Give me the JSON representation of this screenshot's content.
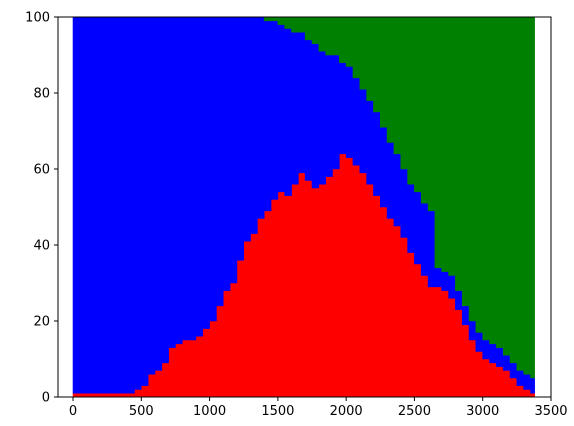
{
  "chart_data": {
    "type": "area",
    "stacked": true,
    "step": true,
    "title": "",
    "xlabel": "",
    "ylabel": "",
    "xlim": [
      -110,
      3500
    ],
    "ylim": [
      0,
      100
    ],
    "xticks": [
      0,
      500,
      1000,
      1500,
      2000,
      2500,
      3000,
      3500
    ],
    "yticks": [
      0,
      20,
      40,
      60,
      80,
      100
    ],
    "grid": false,
    "legend": "none",
    "x": [
      0,
      100,
      200,
      300,
      400,
      450,
      500,
      550,
      600,
      650,
      700,
      750,
      800,
      850,
      900,
      950,
      1000,
      1050,
      1100,
      1150,
      1200,
      1250,
      1300,
      1350,
      1400,
      1450,
      1500,
      1550,
      1600,
      1650,
      1700,
      1750,
      1800,
      1850,
      1900,
      1950,
      2000,
      2050,
      2100,
      2150,
      2200,
      2250,
      2300,
      2350,
      2400,
      2450,
      2500,
      2550,
      2600,
      2650,
      2700,
      2750,
      2800,
      2850,
      2900,
      2950,
      3000,
      3050,
      3100,
      3150,
      3200,
      3250,
      3300,
      3350,
      3380
    ],
    "series": [
      {
        "color": "#ff0000",
        "values": [
          1,
          1,
          1,
          1,
          1,
          2,
          3,
          6,
          7,
          9,
          13,
          14,
          15,
          15,
          16,
          18,
          20,
          24,
          28,
          30,
          36,
          41,
          43,
          47,
          49,
          52,
          54,
          53,
          56,
          59,
          57,
          55,
          56,
          58,
          60,
          64,
          63,
          61,
          59,
          56,
          53,
          50,
          47,
          45,
          42,
          38,
          35,
          32,
          29,
          29,
          28,
          26,
          23,
          19,
          15,
          12,
          10,
          9,
          8,
          7,
          5,
          3,
          2,
          1,
          1
        ]
      },
      {
        "color": "#0000ff",
        "values": [
          99,
          99,
          99,
          99,
          99,
          98,
          97,
          94,
          93,
          91,
          87,
          86,
          85,
          85,
          84,
          82,
          80,
          76,
          72,
          70,
          64,
          59,
          57,
          53,
          50,
          47,
          44,
          44,
          40,
          37,
          37,
          38,
          35,
          32,
          30,
          24,
          24,
          23,
          22,
          22,
          22,
          21,
          20,
          19,
          18,
          18,
          19,
          19,
          20,
          5,
          5,
          6,
          5,
          5,
          5,
          5,
          5,
          5,
          5,
          4,
          4,
          4,
          4,
          4,
          4
        ]
      },
      {
        "color": "#008000",
        "values": [
          0,
          0,
          0,
          0,
          0,
          0,
          0,
          0,
          0,
          0,
          0,
          0,
          0,
          0,
          0,
          0,
          0,
          0,
          0,
          0,
          0,
          0,
          0,
          0,
          1,
          1,
          2,
          3,
          4,
          4,
          6,
          7,
          9,
          10,
          10,
          12,
          13,
          16,
          19,
          22,
          25,
          29,
          33,
          36,
          40,
          44,
          46,
          49,
          51,
          66,
          67,
          68,
          72,
          76,
          80,
          83,
          85,
          86,
          87,
          89,
          91,
          93,
          94,
          95,
          95
        ]
      }
    ]
  }
}
